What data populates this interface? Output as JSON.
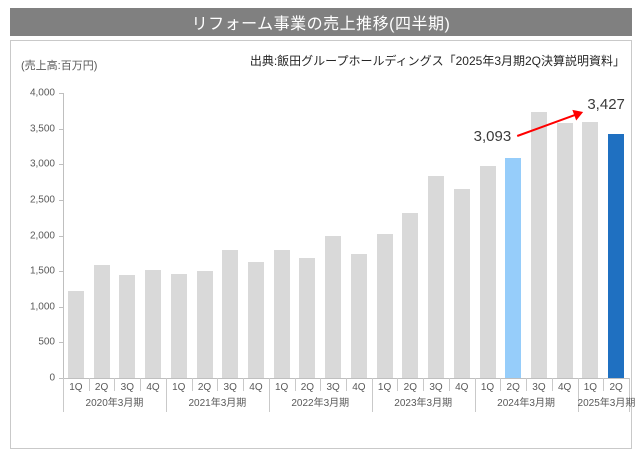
{
  "header": {
    "title": "リフォーム事業の売上推移(四半期)",
    "bg_color": "#808080",
    "text_color": "#FFFFFF"
  },
  "source_note": "出典:飯田グループホールディングス「2025年3月期2Q決算説明資料」",
  "chart_data": {
    "type": "bar",
    "title": "リフォーム事業の売上推移(四半期)",
    "unit_label": "(売上高:百万円)",
    "ylabel": "売上高(百万円)",
    "ylim": [
      0,
      4000
    ],
    "ytick_step": 500,
    "ytick_labels": [
      "0",
      "500",
      "1,000",
      "1,500",
      "2,000",
      "2,500",
      "3,000",
      "3,500",
      "4,000"
    ],
    "grid": false,
    "legend": "none",
    "groups": [
      {
        "label": "2020年3月期",
        "quarters": [
          "1Q",
          "2Q",
          "3Q",
          "4Q"
        ],
        "values": [
          1220,
          1590,
          1440,
          1510
        ]
      },
      {
        "label": "2021年3月期",
        "quarters": [
          "1Q",
          "2Q",
          "3Q",
          "4Q"
        ],
        "values": [
          1460,
          1500,
          1800,
          1630
        ]
      },
      {
        "label": "2022年3月期",
        "quarters": [
          "1Q",
          "2Q",
          "3Q",
          "4Q"
        ],
        "values": [
          1790,
          1690,
          2000,
          1740
        ]
      },
      {
        "label": "2023年3月期",
        "quarters": [
          "1Q",
          "2Q",
          "3Q",
          "4Q"
        ],
        "values": [
          2020,
          2320,
          2840,
          2650
        ]
      },
      {
        "label": "2024年3月期",
        "quarters": [
          "1Q",
          "2Q",
          "3Q",
          "4Q"
        ],
        "values": [
          2980,
          3093,
          3740,
          3580
        ]
      },
      {
        "label": "2025年3月期",
        "quarters": [
          "1Q",
          "2Q"
        ],
        "values": [
          3600,
          3427
        ]
      }
    ],
    "highlights": [
      {
        "group": 4,
        "index": 1,
        "color": "#96CDFA",
        "data_label": "3,093"
      },
      {
        "group": 5,
        "index": 1,
        "color": "#1F70C1",
        "data_label": "3,427"
      }
    ],
    "default_bar_color": "#D9D9D9",
    "annotation_arrow_color": "#FF0000",
    "axis_color": "#BFBFBF"
  }
}
